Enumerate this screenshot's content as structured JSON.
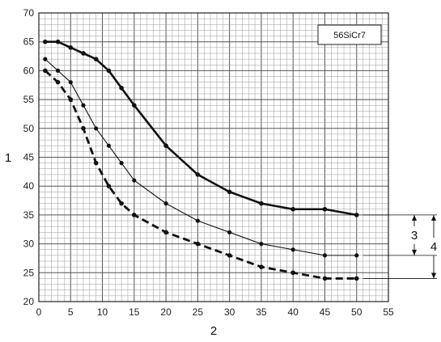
{
  "chart_data": {
    "type": "line",
    "title": "",
    "xlabel": "2",
    "ylabel": "1",
    "xlim": [
      0,
      55
    ],
    "ylim": [
      20,
      70
    ],
    "xticks": [
      0,
      5,
      10,
      15,
      20,
      25,
      30,
      35,
      40,
      45,
      50,
      55
    ],
    "yticks": [
      20,
      25,
      30,
      35,
      40,
      45,
      50,
      55,
      60,
      65,
      70
    ],
    "minor_grid_step": 1,
    "grid": true,
    "legend": {
      "text": "56SiCr7",
      "placement": "top-right"
    },
    "series": [
      {
        "style": "thick-solid",
        "x": [
          1,
          3,
          5,
          7,
          9,
          11,
          13,
          15,
          20,
          25,
          30,
          35,
          40,
          45,
          50
        ],
        "y": [
          65,
          65,
          64,
          63,
          62,
          60,
          57,
          54,
          47,
          42,
          39,
          37,
          36,
          36,
          35
        ]
      },
      {
        "style": "thin-solid",
        "x": [
          1,
          3,
          5,
          7,
          9,
          11,
          13,
          15,
          20,
          25,
          30,
          35,
          40,
          45,
          50
        ],
        "y": [
          62,
          60,
          58,
          54,
          50,
          47,
          44,
          41,
          37,
          34,
          32,
          30,
          29,
          28,
          28
        ]
      },
      {
        "style": "thick-dashed",
        "x": [
          1,
          3,
          5,
          7,
          9,
          11,
          13,
          15,
          20,
          25,
          30,
          35,
          40,
          45,
          50
        ],
        "y": [
          60,
          58,
          55,
          50,
          44,
          40,
          37,
          35,
          32,
          30,
          28,
          26,
          25,
          24,
          24
        ]
      }
    ],
    "annotations": [
      {
        "label": "3",
        "from": 35,
        "to": 28
      },
      {
        "label": "4",
        "from": 35,
        "to": 24
      }
    ]
  }
}
